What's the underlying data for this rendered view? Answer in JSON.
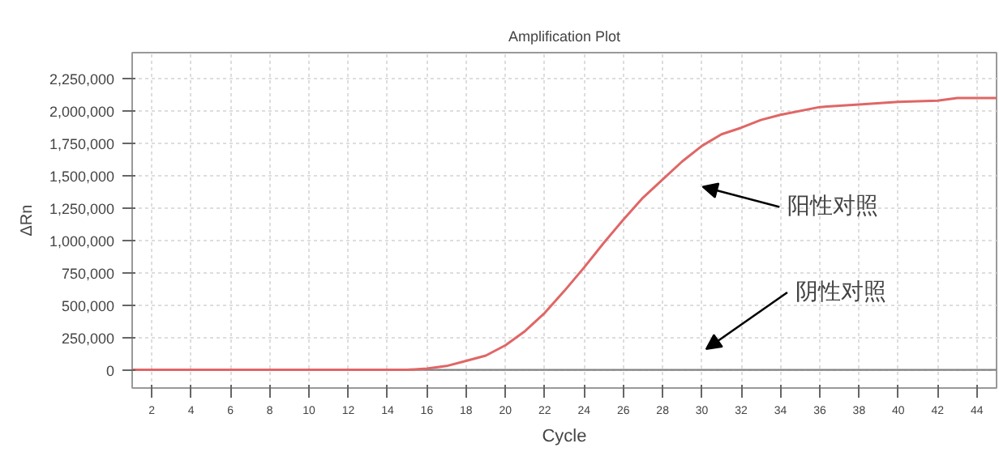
{
  "chart_data": {
    "type": "line",
    "title": "Amplification Plot",
    "xlabel": "Cycle",
    "ylabel": "ΔRn",
    "x": [
      1,
      2,
      3,
      4,
      5,
      6,
      7,
      8,
      9,
      10,
      11,
      12,
      13,
      14,
      15,
      16,
      17,
      18,
      19,
      20,
      21,
      22,
      23,
      24,
      25,
      26,
      27,
      28,
      29,
      30,
      31,
      32,
      33,
      34,
      36,
      38,
      40,
      42,
      43,
      44,
      45
    ],
    "series": [
      {
        "color": "#e06666",
        "values": [
          0,
          0,
          0,
          0,
          0,
          0,
          0,
          0,
          0,
          0,
          0,
          0,
          0,
          0,
          0,
          10000,
          30000,
          70000,
          110000,
          190000,
          300000,
          440000,
          610000,
          790000,
          980000,
          1160000,
          1330000,
          1470000,
          1610000,
          1730000,
          1820000,
          1870000,
          1930000,
          1970000,
          2030000,
          2050000,
          2070000,
          2080000,
          2100000,
          2100000,
          2100000
        ]
      }
    ],
    "xlim": [
      1,
      45
    ],
    "ylim": [
      -140000,
      2450000
    ],
    "xticks": [
      2,
      4,
      6,
      8,
      10,
      12,
      14,
      16,
      18,
      20,
      22,
      24,
      26,
      28,
      30,
      32,
      34,
      36,
      38,
      40,
      42,
      44
    ],
    "yticks": [
      {
        "value": 0,
        "label": "0"
      },
      {
        "value": 250000,
        "label": "250,000"
      },
      {
        "value": 500000,
        "label": "500,000"
      },
      {
        "value": 750000,
        "label": "750,000"
      },
      {
        "value": 1000000,
        "label": "1,000,000"
      },
      {
        "value": 1250000,
        "label": "1,250,000"
      },
      {
        "value": 1500000,
        "label": "1,500,000"
      },
      {
        "value": 1750000,
        "label": "1,750,000"
      },
      {
        "value": 2000000,
        "label": "2,000,000"
      },
      {
        "value": 2250000,
        "label": "2,250,000"
      }
    ],
    "ref_lines": [
      {
        "axis": "y",
        "value": 0,
        "color": "#808080"
      }
    ],
    "annotations": [
      "阳性对照",
      "阴性对照"
    ],
    "grid": true,
    "line_style": "solid",
    "marker": "none"
  }
}
